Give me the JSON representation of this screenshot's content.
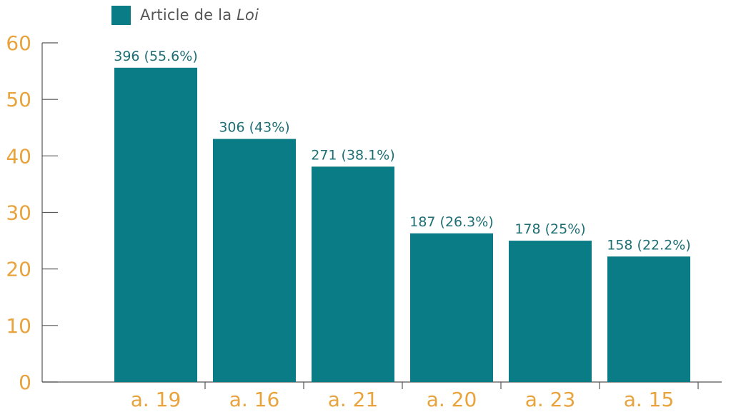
{
  "chart_data": {
    "type": "bar",
    "categories": [
      "a. 19",
      "a. 16",
      "a. 21",
      "a. 20",
      "a. 23",
      "a. 15"
    ],
    "values": [
      55.6,
      43,
      38.1,
      26.3,
      25,
      22.2
    ],
    "data_labels": [
      "396 (55.6%)",
      "306 (43%)",
      "271 (38.1%)",
      "187 (26.3%)",
      "178 (25%)",
      "158 (22.2%)"
    ],
    "series": [
      {
        "name": "Article de la Loi",
        "name_plain": "Article de la ",
        "name_italic": "Loi",
        "values": [
          55.6,
          43,
          38.1,
          26.3,
          25,
          22.2
        ]
      }
    ],
    "yticks": [
      "0",
      "10",
      "20",
      "30",
      "40",
      "50",
      "60"
    ],
    "ylim": [
      0,
      60
    ],
    "title": "",
    "xlabel": "",
    "ylabel": "",
    "grid": false,
    "legend_position": "top-left",
    "colors": {
      "bar": "#0a7c85",
      "axis_text": "#e8a33c",
      "data_label": "#1e6f75",
      "axis_line": "#555555",
      "legend_text": "#555555"
    }
  }
}
